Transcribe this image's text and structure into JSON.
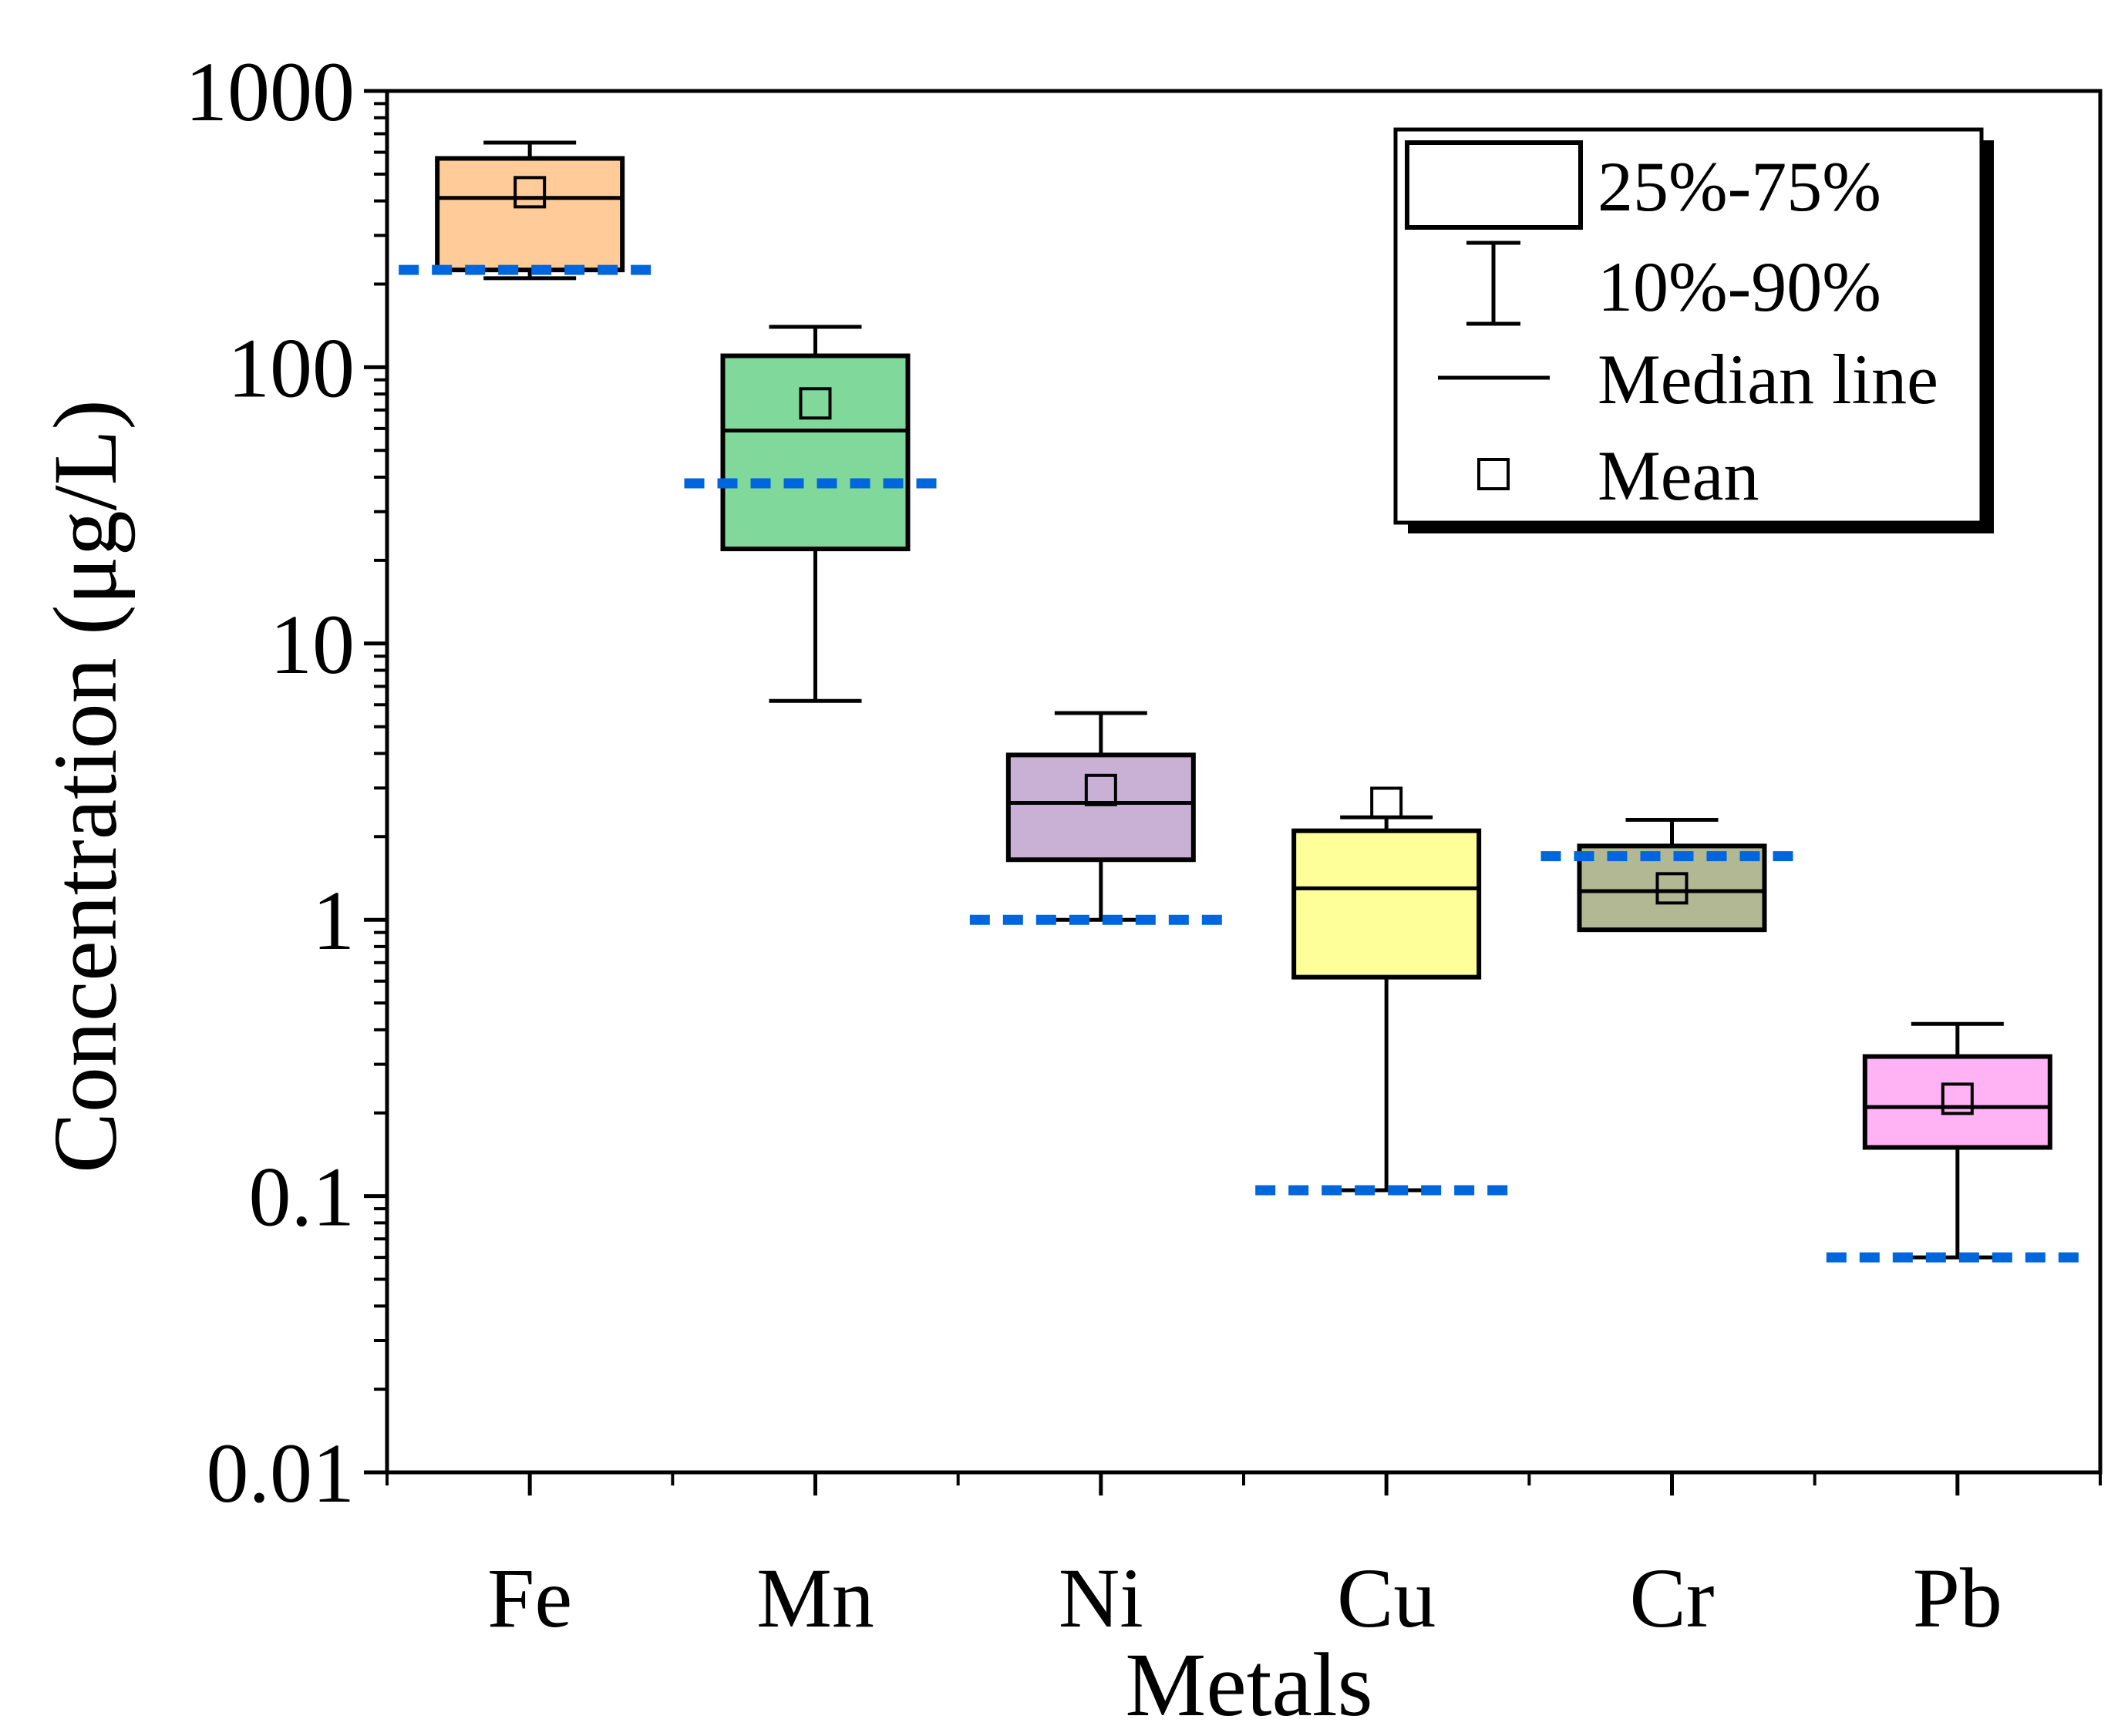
{
  "chart_data": {
    "type": "box",
    "title": "",
    "xlabel": "Metals",
    "ylabel": "Concentration (μg/L)",
    "yscale": "log",
    "ylim": [
      0.01,
      1000
    ],
    "yticks": [
      {
        "value": 0.01,
        "label": "0.01"
      },
      {
        "value": 0.1,
        "label": "0.1"
      },
      {
        "value": 1,
        "label": "1"
      },
      {
        "value": 10,
        "label": "10"
      },
      {
        "value": 100,
        "label": "100"
      },
      {
        "value": 1000,
        "label": "1000"
      }
    ],
    "categories": [
      "Fe",
      "Mn",
      "Ni",
      "Cu",
      "Cr",
      "Pb"
    ],
    "boxes": [
      {
        "name": "Fe",
        "p10": 210,
        "q1": 225,
        "median": 410,
        "q3": 570,
        "p90": 650,
        "mean": 430,
        "reference": 225,
        "color": "#FFCC99"
      },
      {
        "name": "Mn",
        "p10": 6.2,
        "q1": 22,
        "median": 59,
        "q3": 110,
        "p90": 140,
        "mean": 74,
        "reference": 38,
        "color": "#80D99A"
      },
      {
        "name": "Ni",
        "p10": 1.0,
        "q1": 1.65,
        "median": 2.65,
        "q3": 3.95,
        "p90": 5.6,
        "mean": 2.95,
        "reference": 1.0,
        "color": "#C9B1D6"
      },
      {
        "name": "Cu",
        "p10": 0.105,
        "q1": 0.62,
        "median": 1.3,
        "q3": 2.1,
        "p90": 2.35,
        "mean": 2.65,
        "reference": 0.105,
        "color": "#FFFF99"
      },
      {
        "name": "Cr",
        "p10": 0.92,
        "q1": 0.92,
        "median": 1.27,
        "q3": 1.85,
        "p90": 2.3,
        "mean": 1.3,
        "reference": 1.7,
        "color": "#B3B894"
      },
      {
        "name": "Pb",
        "p10": 0.06,
        "q1": 0.15,
        "median": 0.21,
        "q3": 0.32,
        "p90": 0.42,
        "mean": 0.225,
        "reference": 0.06,
        "color": "#FFB3F5"
      }
    ],
    "reference_line_color": "#0066DD",
    "legend": {
      "position": "top-right",
      "entries": [
        {
          "symbol": "box",
          "label": "25%-75%"
        },
        {
          "symbol": "whisker",
          "label": "10%-90%"
        },
        {
          "symbol": "line",
          "label": "Median line"
        },
        {
          "symbol": "square",
          "label": "Mean"
        }
      ]
    }
  }
}
